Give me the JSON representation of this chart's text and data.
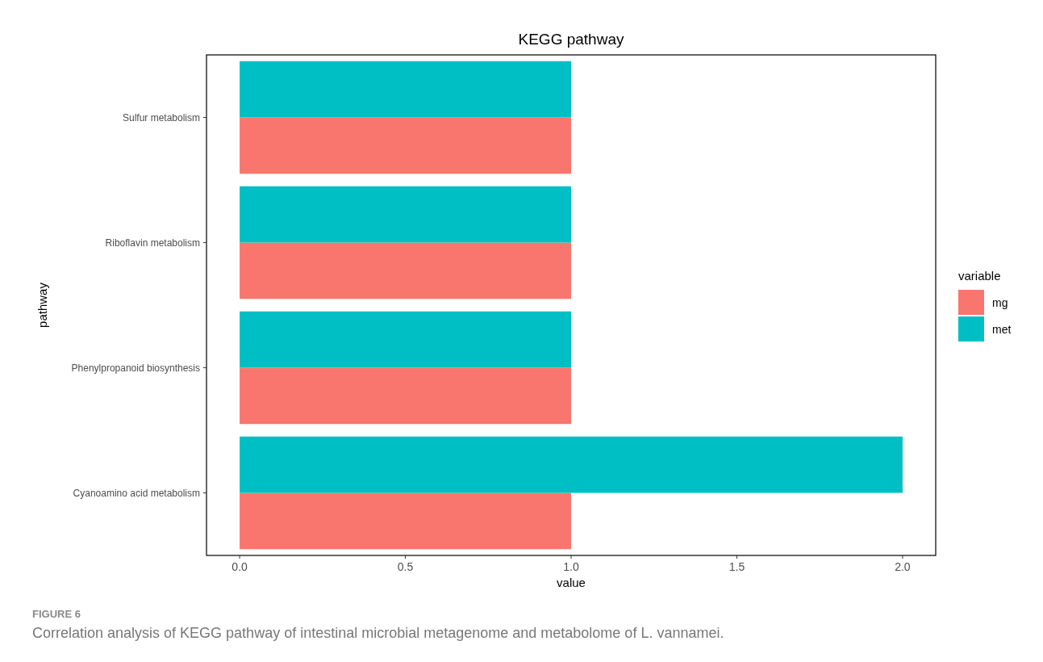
{
  "chart_data": {
    "type": "bar",
    "orientation": "horizontal",
    "title": "KEGG pathway",
    "xlabel": "value",
    "ylabel": "pathway",
    "legend_title": "variable",
    "categories": [
      "Sulfur metabolism",
      "Riboflavin metabolism",
      "Phenylpropanoid biosynthesis",
      "Cyanoamino acid metabolism"
    ],
    "series": [
      {
        "name": "mg",
        "color": "#f8766d",
        "values": [
          1,
          1,
          1,
          1
        ]
      },
      {
        "name": "met",
        "color": "#00bfc4",
        "values": [
          1,
          1,
          1,
          2
        ]
      }
    ],
    "xlim": [
      -0.1,
      2.1
    ],
    "xticks": [
      {
        "value": 0,
        "label": "0.0"
      },
      {
        "value": 0.5,
        "label": "0.5"
      },
      {
        "value": 1,
        "label": "1.0"
      },
      {
        "value": 1.5,
        "label": "1.5"
      },
      {
        "value": 2,
        "label": "2.0"
      }
    ],
    "grid": false,
    "legend": "right",
    "annotations": [
      "FIGURE 6",
      "Correlation analysis of KEGG pathway of intestinal microbial metagenome and metabolome of L. vannamei."
    ]
  }
}
